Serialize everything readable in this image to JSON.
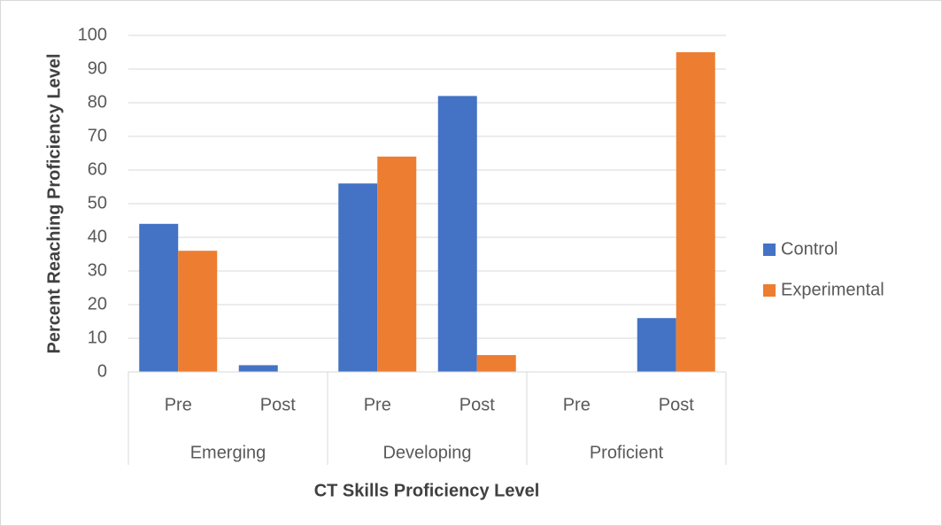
{
  "chart_data": {
    "type": "bar",
    "x_label": "CT Skills Proficiency Level",
    "y_label": "Percent Reaching Proficiency Level",
    "categories": [
      "Pre",
      "Post",
      "Pre",
      "Post",
      "Pre",
      "Post"
    ],
    "groups": [
      "Emerging",
      "Developing",
      "Proficient"
    ],
    "series": [
      {
        "name": "Control",
        "color": "#4472c4",
        "values": [
          44,
          2,
          56,
          82,
          0,
          16
        ]
      },
      {
        "name": "Experimental",
        "color": "#ed7d31",
        "values": [
          36,
          0,
          64,
          5,
          0,
          95
        ]
      }
    ],
    "ylim": [
      0,
      100
    ],
    "yticks": [
      0,
      10,
      20,
      30,
      40,
      50,
      60,
      70,
      80,
      90,
      100
    ],
    "grid": true,
    "legend": "right"
  }
}
